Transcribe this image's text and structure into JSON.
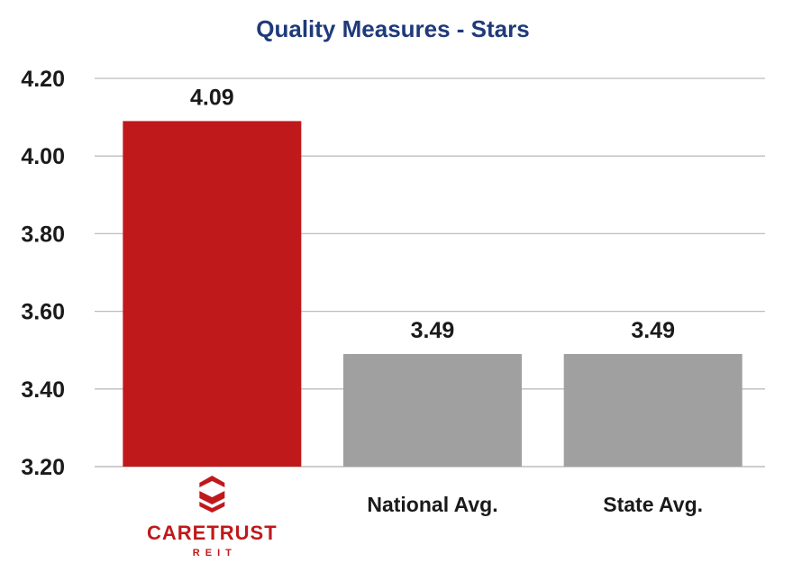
{
  "chart_data": {
    "type": "bar",
    "title": "Quality Measures - Stars",
    "categories": [
      "CARETRUST REIT",
      "National Avg.",
      "State Avg."
    ],
    "values": [
      4.09,
      3.49,
      3.49
    ],
    "value_labels": [
      "4.09",
      "3.49",
      "3.49"
    ],
    "ylim": [
      3.2,
      4.2
    ],
    "yticks": [
      3.2,
      3.4,
      3.6,
      3.8,
      4.0,
      4.2
    ],
    "ytick_labels": [
      "3.20",
      "3.40",
      "3.60",
      "3.80",
      "4.00",
      "4.20"
    ],
    "xlabel": "",
    "ylabel": "",
    "grid": true,
    "legend": false,
    "bar_colors": [
      "#c0191b",
      "#a0a0a0",
      "#a0a0a0"
    ],
    "logo_category_index": 0
  },
  "logo": {
    "name": "CARETRUST",
    "sub": "REIT",
    "care_color": "#c0191b",
    "trust_color": "#c0191b"
  },
  "colors": {
    "title": "#1f3a7a",
    "grid": "#bdbdbd",
    "text": "#1a1a1a"
  }
}
